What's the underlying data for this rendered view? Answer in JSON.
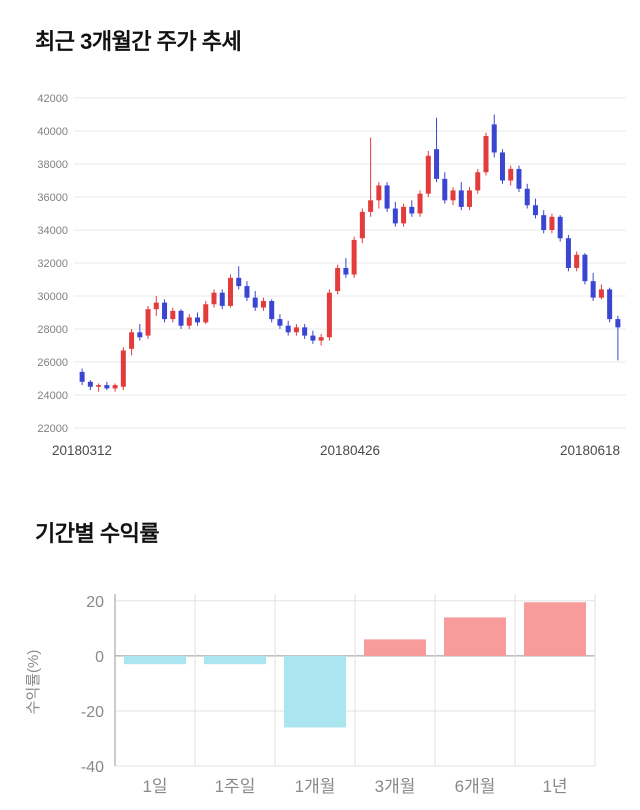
{
  "price_section": {
    "title": "최근 3개월간 주가 추세"
  },
  "returns_section": {
    "title": "기간별 수익률"
  },
  "chart_data": [
    {
      "type": "candlestick",
      "title": "최근 3개월간 주가 추세",
      "x_axis_labels": [
        "20180312",
        "20180426",
        "20180618"
      ],
      "ylim": [
        22000,
        42000
      ],
      "y_tick_step": 2000,
      "up_color": "#e23c3c",
      "down_color": "#3a45d2",
      "grid_color": "#e8e8e8",
      "axis_text_color": "#808080",
      "x_label_color": "#4a4a4a",
      "candle_format": [
        "date",
        "open",
        "high",
        "low",
        "close"
      ],
      "candles": [
        [
          "20180312",
          25400,
          25600,
          24600,
          24800
        ],
        [
          "20180313",
          24800,
          24900,
          24300,
          24500
        ],
        [
          "20180314",
          24500,
          24700,
          24200,
          24600
        ],
        [
          "20180315",
          24600,
          24800,
          24300,
          24400
        ],
        [
          "20180316",
          24400,
          24700,
          24200,
          24600
        ],
        [
          "20180319",
          24500,
          26900,
          24300,
          26700
        ],
        [
          "20180320",
          26800,
          28000,
          26400,
          27800
        ],
        [
          "20180321",
          27800,
          28300,
          27300,
          27500
        ],
        [
          "20180322",
          27600,
          29400,
          27400,
          29200
        ],
        [
          "20180323",
          29200,
          30000,
          28800,
          29600
        ],
        [
          "20180326",
          29600,
          29800,
          28400,
          28600
        ],
        [
          "20180327",
          28600,
          29300,
          28400,
          29100
        ],
        [
          "20180328",
          29100,
          29200,
          28000,
          28200
        ],
        [
          "20180329",
          28200,
          28900,
          28000,
          28700
        ],
        [
          "20180330",
          28700,
          29000,
          28200,
          28400
        ],
        [
          "20180402",
          28400,
          29700,
          28300,
          29500
        ],
        [
          "20180403",
          29500,
          30400,
          29300,
          30200
        ],
        [
          "20180404",
          30200,
          30400,
          29200,
          29400
        ],
        [
          "20180405",
          29400,
          31300,
          29300,
          31100
        ],
        [
          "20180406",
          31100,
          31800,
          30400,
          30600
        ],
        [
          "20180409",
          30600,
          30900,
          29700,
          29900
        ],
        [
          "20180410",
          29900,
          30300,
          29100,
          29300
        ],
        [
          "20180411",
          29300,
          29900,
          29100,
          29700
        ],
        [
          "20180412",
          29700,
          29800,
          28400,
          28600
        ],
        [
          "20180413",
          28600,
          28900,
          28000,
          28200
        ],
        [
          "20180416",
          28200,
          28500,
          27600,
          27800
        ],
        [
          "20180417",
          27800,
          28300,
          27600,
          28100
        ],
        [
          "20180418",
          28100,
          28300,
          27400,
          27600
        ],
        [
          "20180419",
          27600,
          27900,
          27100,
          27300
        ],
        [
          "20180420",
          27300,
          27700,
          27000,
          27500
        ],
        [
          "20180423",
          27500,
          30400,
          27300,
          30200
        ],
        [
          "20180424",
          30300,
          31900,
          30100,
          31700
        ],
        [
          "20180425",
          31700,
          32300,
          31100,
          31300
        ],
        [
          "20180426",
          31300,
          33600,
          31100,
          33400
        ],
        [
          "20180427",
          33500,
          35300,
          33200,
          35100
        ],
        [
          "20180430",
          35100,
          39600,
          34800,
          35800
        ],
        [
          "20180502",
          35800,
          36900,
          35300,
          36700
        ],
        [
          "20180503",
          36700,
          36900,
          35100,
          35300
        ],
        [
          "20180504",
          35300,
          35700,
          34200,
          34400
        ],
        [
          "20180508",
          34400,
          35600,
          34200,
          35400
        ],
        [
          "20180509",
          35400,
          35800,
          34800,
          35000
        ],
        [
          "20180510",
          35000,
          36400,
          34800,
          36200
        ],
        [
          "20180511",
          36200,
          38800,
          36000,
          38500
        ],
        [
          "20180514",
          38900,
          40800,
          36900,
          37100
        ],
        [
          "20180515",
          37100,
          37500,
          35600,
          35800
        ],
        [
          "20180516",
          35800,
          36600,
          35500,
          36400
        ],
        [
          "20180517",
          36400,
          36900,
          35200,
          35400
        ],
        [
          "20180518",
          35400,
          36600,
          35200,
          36400
        ],
        [
          "20180521",
          36400,
          37700,
          36200,
          37500
        ],
        [
          "20180523",
          37500,
          39900,
          37300,
          39700
        ],
        [
          "20180524",
          40400,
          41000,
          38400,
          38700
        ],
        [
          "20180525",
          38700,
          38900,
          36800,
          37000
        ],
        [
          "20180528",
          37000,
          37900,
          36700,
          37700
        ],
        [
          "20180529",
          37700,
          37900,
          36300,
          36500
        ],
        [
          "20180530",
          36500,
          36800,
          35300,
          35500
        ],
        [
          "20180531",
          35500,
          35900,
          34700,
          34900
        ],
        [
          "20180601",
          34900,
          35200,
          33800,
          34000
        ],
        [
          "20180604",
          34000,
          35000,
          33800,
          34800
        ],
        [
          "20180605",
          34800,
          34900,
          33300,
          33500
        ],
        [
          "20180607",
          33500,
          33700,
          31500,
          31700
        ],
        [
          "20180608",
          31700,
          32700,
          31500,
          32500
        ],
        [
          "20180611",
          32500,
          32600,
          30700,
          30900
        ],
        [
          "20180612",
          30900,
          31400,
          29700,
          29900
        ],
        [
          "20180614",
          29900,
          30700,
          29800,
          30400
        ],
        [
          "20180615",
          30400,
          30500,
          28400,
          28600
        ],
        [
          "20180618",
          28600,
          28800,
          26100,
          28100
        ]
      ]
    },
    {
      "type": "bar",
      "title": "기간별 수익률",
      "ylabel": "수익률(%)",
      "categories": [
        "1일",
        "1주일",
        "1개월",
        "3개월",
        "6개월",
        "1년"
      ],
      "values": [
        -3,
        -3,
        -26,
        6,
        14,
        19.5
      ],
      "y_ticks": [
        20,
        0,
        -20,
        -40
      ],
      "ylim": [
        -40,
        22.5
      ],
      "positive_color": "#f89b9b",
      "negative_color": "#abe6f0",
      "grid_color": "#e0e0e0",
      "zero_line_color": "#999999",
      "axis_text_color": "#898989"
    }
  ]
}
